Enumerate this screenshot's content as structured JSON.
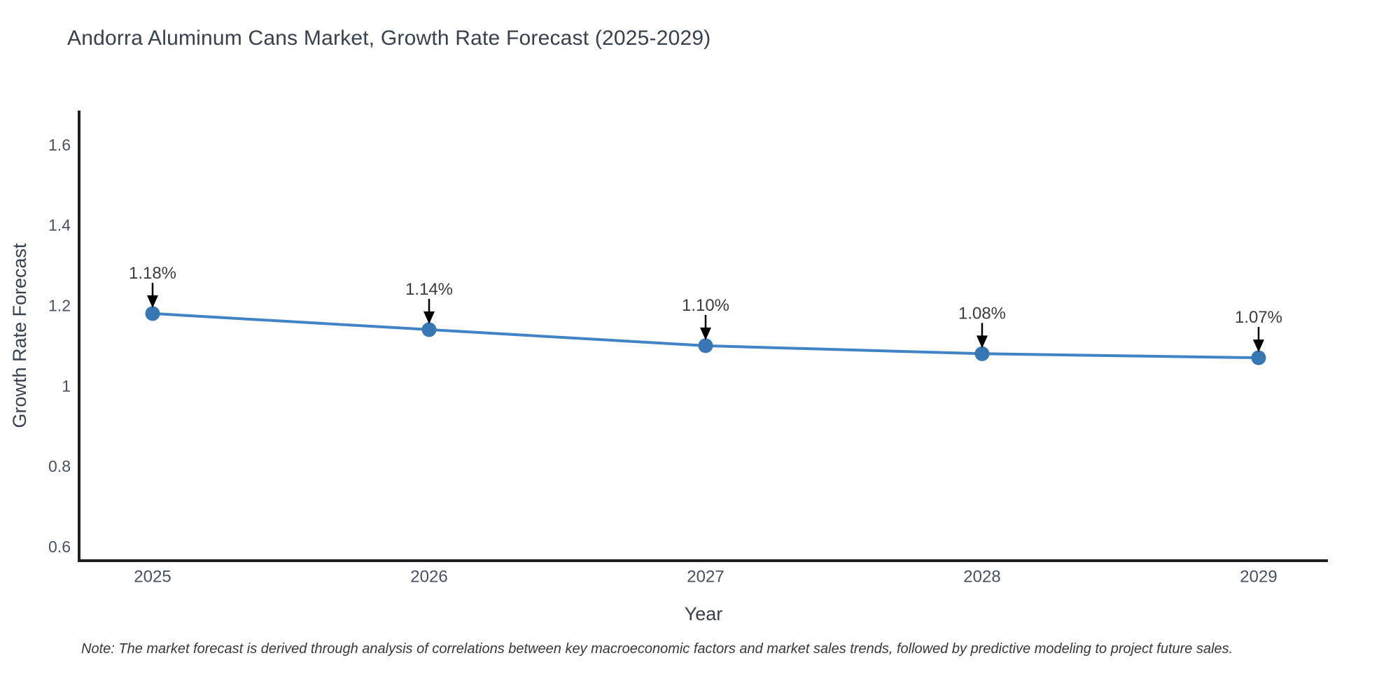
{
  "page": {
    "background_color": "#ffffff"
  },
  "chart_data": {
    "type": "line",
    "title": "Andorra Aluminum Cans Market, Growth Rate Forecast (2025-2029)",
    "xlabel": "Year",
    "ylabel": "Growth Rate Forecast",
    "categories": [
      "2025",
      "2026",
      "2027",
      "2028",
      "2029"
    ],
    "series": [
      {
        "name": "Growth Rate Forecast",
        "values": [
          1.18,
          1.14,
          1.1,
          1.08,
          1.07
        ],
        "point_labels": [
          "1.18%",
          "1.14%",
          "1.10%",
          "1.08%",
          "1.07%"
        ]
      }
    ],
    "yticks": [
      "0.6",
      "0.8",
      "1",
      "1.2",
      "1.4",
      "1.6"
    ],
    "ytick_values": [
      0.6,
      0.8,
      1,
      1.2,
      1.4,
      1.6
    ],
    "ylim": [
      0.565,
      1.685
    ],
    "grid": false,
    "legend_position": "none",
    "annotation_style": "black arrow pointing down to each marker",
    "line_color": "#4183c4",
    "marker_color": "#3677b4",
    "axis_color": "#1f1f1f",
    "arrow_color": "#000000",
    "tick_label_color": "#485263",
    "axis_title_color": "#37414f",
    "annotation_text_color": "#3c3c3c"
  },
  "note": {
    "text": "Note: The market forecast is derived through analysis of correlations between key macroeconomic factors and market sales trends, followed by predictive modeling to project future sales."
  }
}
